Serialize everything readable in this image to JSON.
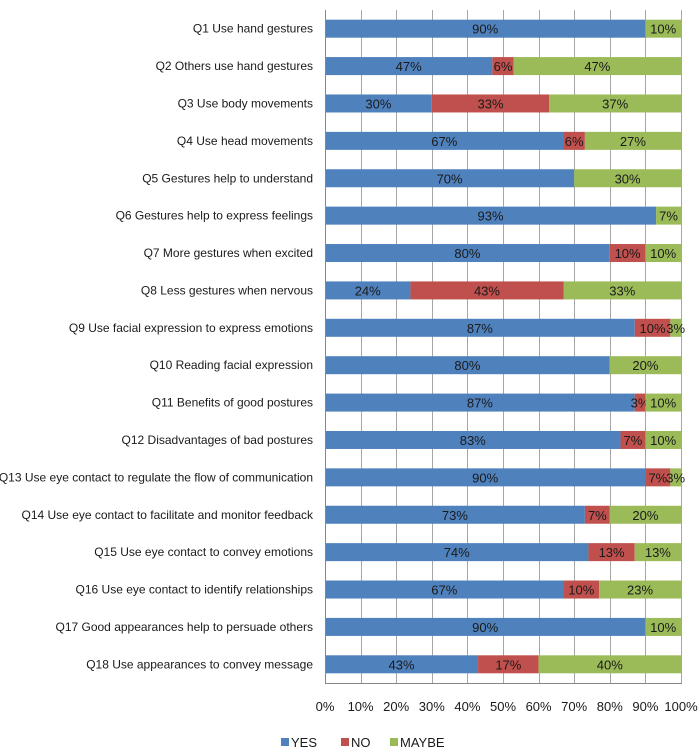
{
  "chart_data": {
    "type": "bar",
    "orientation": "horizontal",
    "stacked": "percent",
    "title": "",
    "xlabel": "",
    "ylabel": "",
    "xlim": [
      0,
      100
    ],
    "x_ticks": [
      "0%",
      "10%",
      "20%",
      "30%",
      "40%",
      "50%",
      "60%",
      "70%",
      "80%",
      "90%",
      "100%"
    ],
    "grid": true,
    "legend_position": "bottom",
    "categories": [
      "Q1 Use hand gestures",
      "Q2 Others use hand gestures",
      "Q3 Use body movements",
      "Q4 Use head movements",
      "Q5 Gestures help to understand",
      "Q6 Gestures help to express feelings",
      "Q7 More gestures when excited",
      "Q8 Less gestures when nervous",
      "Q9 Use facial expression to express emotions",
      "Q10 Reading facial expression",
      "Q11 Benefits of good postures",
      "Q12 Disadvantages of bad postures",
      "Q13 Use eye contact to regulate the flow of communication",
      "Q14 Use eye contact to facilitate and monitor feedback",
      "Q15 Use eye contact to convey emotions",
      "Q16 Use eye contact to identify relationships",
      "Q17 Good appearances help to persuade others",
      "Q18 Use appearances to convey message"
    ],
    "series": [
      {
        "name": "YES",
        "color": "#4f81bd",
        "values": [
          90,
          47,
          30,
          67,
          70,
          93,
          80,
          24,
          87,
          80,
          87,
          83,
          90,
          73,
          74,
          67,
          90,
          43
        ]
      },
      {
        "name": "NO",
        "color": "#c0504d",
        "values": [
          0,
          6,
          33,
          6,
          0,
          0,
          10,
          43,
          10,
          0,
          3,
          7,
          7,
          7,
          13,
          10,
          0,
          17
        ]
      },
      {
        "name": "MAYBE",
        "color": "#9bbb59",
        "values": [
          10,
          47,
          37,
          27,
          30,
          7,
          10,
          33,
          3,
          20,
          10,
          10,
          3,
          20,
          13,
          23,
          10,
          40
        ]
      }
    ]
  },
  "colors": {
    "grid": "#a6a6a6",
    "axis": "#868686",
    "text": "#1a1a1a"
  }
}
